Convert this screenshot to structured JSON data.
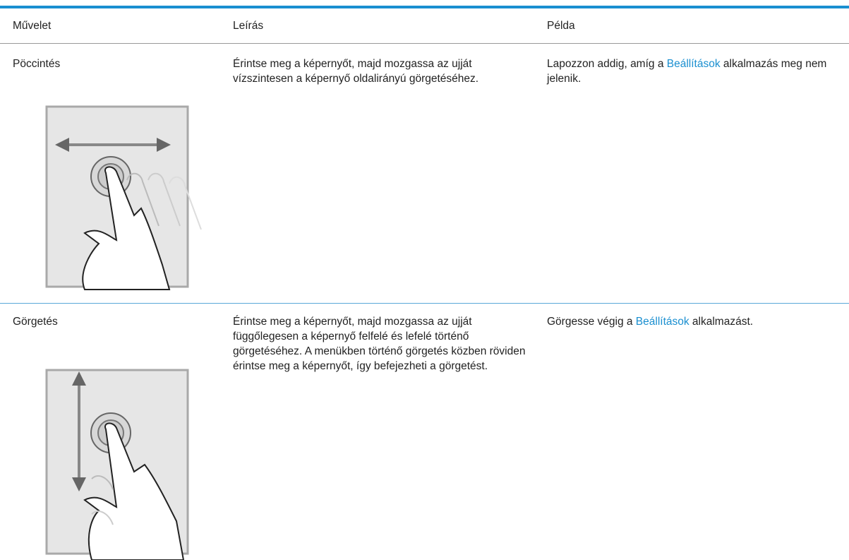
{
  "table": {
    "headers": [
      "Művelet",
      "Leírás",
      "Példa"
    ],
    "rows": [
      {
        "action": "Pöccintés",
        "description": "Érintse meg a képernyőt, majd mozgassa az ujját vízszintesen a képernyő oldalirányú görgetéséhez.",
        "example": [
          "Lapozzon addig, amíg a ",
          "Beállítások",
          " alkalmazás meg nem jelenik."
        ]
      },
      {
        "action": "Görgetés",
        "description": "Érintse meg a képernyőt, majd mozgassa az ujját függőlegesen a képernyő felfelé és lefelé történő görgetéséhez. A menükben történő görgetés közben röviden érintse meg a képernyőt, így befejezheti a görgetést.",
        "example": [
          "Görgesse végig a ",
          "Beállítások",
          " alkalmazást."
        ]
      }
    ]
  }
}
